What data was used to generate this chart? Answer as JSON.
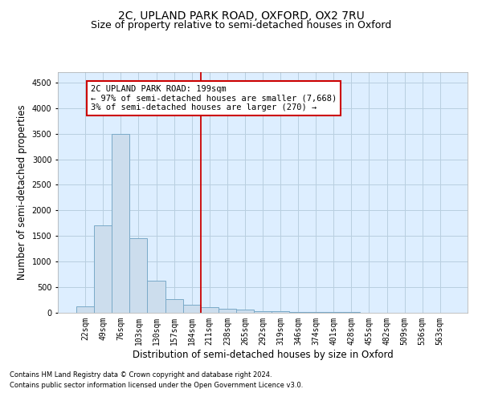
{
  "title_line1": "2C, UPLAND PARK ROAD, OXFORD, OX2 7RU",
  "title_line2": "Size of property relative to semi-detached houses in Oxford",
  "xlabel": "Distribution of semi-detached houses by size in Oxford",
  "ylabel": "Number of semi-detached properties",
  "categories": [
    "22sqm",
    "49sqm",
    "76sqm",
    "103sqm",
    "130sqm",
    "157sqm",
    "184sqm",
    "211sqm",
    "238sqm",
    "265sqm",
    "292sqm",
    "319sqm",
    "346sqm",
    "374sqm",
    "401sqm",
    "428sqm",
    "455sqm",
    "482sqm",
    "509sqm",
    "536sqm",
    "563sqm"
  ],
  "values": [
    120,
    1700,
    3500,
    1450,
    620,
    260,
    160,
    110,
    80,
    55,
    35,
    25,
    20,
    15,
    10,
    8,
    5,
    4,
    3,
    2,
    2
  ],
  "bar_color": "#ccdded",
  "bar_edge_color": "#7aaac8",
  "vline_x": 6.5,
  "vline_color": "#cc0000",
  "annotation_title": "2C UPLAND PARK ROAD: 199sqm",
  "annotation_line1": "← 97% of semi-detached houses are smaller (7,668)",
  "annotation_line2": "3% of semi-detached houses are larger (270) →",
  "annotation_box_color": "#ffffff",
  "annotation_box_edge": "#cc0000",
  "ylim": [
    0,
    4700
  ],
  "yticks": [
    0,
    500,
    1000,
    1500,
    2000,
    2500,
    3000,
    3500,
    4000,
    4500
  ],
  "footnote1": "Contains HM Land Registry data © Crown copyright and database right 2024.",
  "footnote2": "Contains public sector information licensed under the Open Government Licence v3.0.",
  "bg_color": "#ffffff",
  "plot_bg_color": "#ddeeff",
  "grid_color": "#b8cfe0",
  "title_fontsize": 10,
  "subtitle_fontsize": 9,
  "axis_label_fontsize": 8.5,
  "tick_fontsize": 7,
  "annotation_fontsize": 7.5,
  "footnote_fontsize": 6
}
